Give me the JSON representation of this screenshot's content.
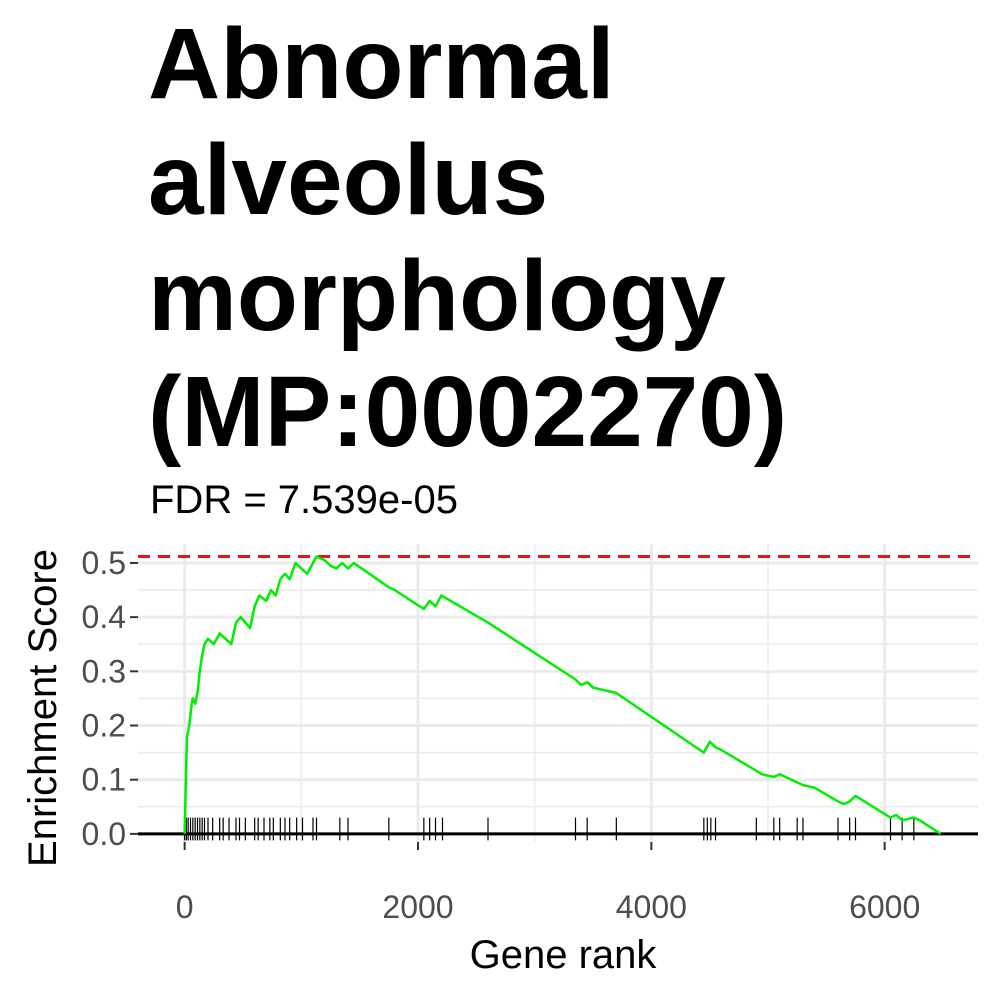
{
  "chart_data": {
    "type": "line",
    "title": "Abnormal\nalveolus\nmorphology\n(MP:0002270)",
    "subtitle": "FDR = 7.539e-05",
    "xlabel": "Gene rank",
    "ylabel": "Enrichment Score",
    "xlim": [
      -400,
      6800
    ],
    "ylim": [
      -0.015,
      0.535
    ],
    "x_ticks": [
      0,
      2000,
      4000,
      6000
    ],
    "x_tick_labels": [
      "0",
      "2000",
      "4000",
      "6000"
    ],
    "y_ticks": [
      0.0,
      0.1,
      0.2,
      0.3,
      0.4,
      0.5
    ],
    "y_tick_labels": [
      "0.0",
      "0.1",
      "0.2",
      "0.3",
      "0.4",
      "0.5"
    ],
    "grid": true,
    "max_es": 0.512,
    "series": [
      {
        "color": "#00ee00",
        "points": [
          [
            0,
            0.0
          ],
          [
            5,
            0.05
          ],
          [
            10,
            0.1
          ],
          [
            15,
            0.14
          ],
          [
            20,
            0.18
          ],
          [
            30,
            0.19
          ],
          [
            40,
            0.2
          ],
          [
            50,
            0.22
          ],
          [
            60,
            0.24
          ],
          [
            70,
            0.25
          ],
          [
            90,
            0.24
          ],
          [
            110,
            0.26
          ],
          [
            130,
            0.3
          ],
          [
            150,
            0.33
          ],
          [
            170,
            0.35
          ],
          [
            200,
            0.36
          ],
          [
            250,
            0.35
          ],
          [
            300,
            0.37
          ],
          [
            350,
            0.36
          ],
          [
            400,
            0.35
          ],
          [
            440,
            0.39
          ],
          [
            480,
            0.4
          ],
          [
            520,
            0.39
          ],
          [
            560,
            0.38
          ],
          [
            600,
            0.42
          ],
          [
            640,
            0.44
          ],
          [
            700,
            0.43
          ],
          [
            740,
            0.45
          ],
          [
            780,
            0.44
          ],
          [
            820,
            0.47
          ],
          [
            860,
            0.48
          ],
          [
            900,
            0.47
          ],
          [
            950,
            0.5
          ],
          [
            1000,
            0.49
          ],
          [
            1050,
            0.48
          ],
          [
            1100,
            0.5
          ],
          [
            1130,
            0.512
          ],
          [
            1200,
            0.505
          ],
          [
            1250,
            0.495
          ],
          [
            1300,
            0.49
          ],
          [
            1350,
            0.5
          ],
          [
            1400,
            0.49
          ],
          [
            1450,
            0.5
          ],
          [
            1750,
            0.455
          ],
          [
            1800,
            0.45
          ],
          [
            2050,
            0.415
          ],
          [
            2100,
            0.43
          ],
          [
            2150,
            0.42
          ],
          [
            2200,
            0.44
          ],
          [
            2600,
            0.39
          ],
          [
            3350,
            0.285
          ],
          [
            3400,
            0.275
          ],
          [
            3450,
            0.28
          ],
          [
            3500,
            0.27
          ],
          [
            3700,
            0.26
          ],
          [
            4450,
            0.15
          ],
          [
            4500,
            0.17
          ],
          [
            4550,
            0.16
          ],
          [
            4600,
            0.155
          ],
          [
            4950,
            0.11
          ],
          [
            5050,
            0.105
          ],
          [
            5100,
            0.11
          ],
          [
            5300,
            0.09
          ],
          [
            5400,
            0.085
          ],
          [
            5600,
            0.06
          ],
          [
            5650,
            0.055
          ],
          [
            5700,
            0.06
          ],
          [
            5750,
            0.07
          ],
          [
            6050,
            0.03
          ],
          [
            6100,
            0.035
          ],
          [
            6150,
            0.025
          ],
          [
            6250,
            0.03
          ],
          [
            6300,
            0.025
          ],
          [
            6480,
            0.0
          ]
        ]
      }
    ],
    "gene_hits": [
      0,
      15,
      30,
      50,
      70,
      90,
      110,
      130,
      150,
      170,
      200,
      240,
      300,
      330,
      380,
      440,
      470,
      520,
      600,
      630,
      680,
      730,
      760,
      820,
      860,
      900,
      960,
      1010,
      1100,
      1130,
      1330,
      1400,
      1750,
      2050,
      2100,
      2150,
      2210,
      2600,
      3350,
      3450,
      3700,
      4450,
      4480,
      4510,
      4550,
      4900,
      5050,
      5100,
      5250,
      5300,
      5600,
      5700,
      5750,
      6050,
      6150,
      6250
    ],
    "colors": {
      "line": "#00ee00",
      "max_line": "#e8141a",
      "grid": "#ebebeb",
      "axis": "#000000",
      "ticks": "#333333"
    }
  }
}
